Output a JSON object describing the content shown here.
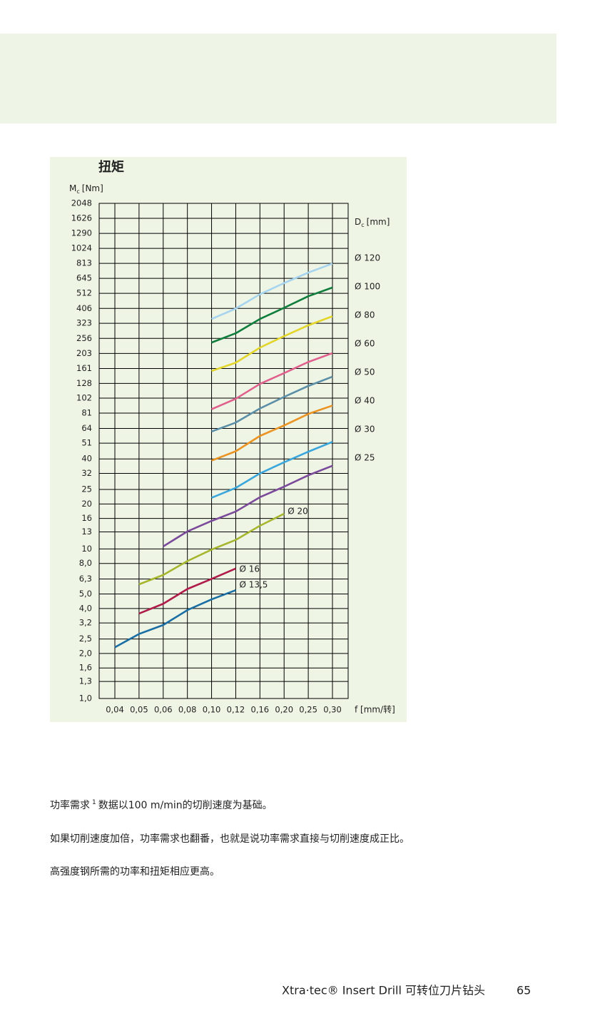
{
  "chart_data": {
    "type": "line",
    "title": "扭矩",
    "y_label": {
      "main": "M",
      "sub": "c",
      "unit": "[Nm]"
    },
    "series_label": {
      "main": "D",
      "sub": "c",
      "unit": "[mm]"
    },
    "x_label": "f [mm/转]",
    "log_y": true,
    "grid": true,
    "categories": [
      "0,04",
      "0,05",
      "0,06",
      "0,08",
      "0,10",
      "0,12",
      "0,16",
      "0,20",
      "0,25",
      "0,30"
    ],
    "ylim": [
      1,
      2048
    ],
    "yticks": [
      {
        "value": 1,
        "label": "1,0"
      },
      {
        "value": 1.3,
        "label": "1,3"
      },
      {
        "value": 1.6,
        "label": "1,6"
      },
      {
        "value": 2,
        "label": "2,0"
      },
      {
        "value": 2.5,
        "label": "2,5"
      },
      {
        "value": 3.2,
        "label": "3,2"
      },
      {
        "value": 4,
        "label": "4,0"
      },
      {
        "value": 5,
        "label": "5,0"
      },
      {
        "value": 6.3,
        "label": "6,3"
      },
      {
        "value": 8,
        "label": "8,0"
      },
      10,
      13,
      16,
      20,
      25,
      32,
      40,
      51,
      64,
      81,
      102,
      128,
      161,
      203,
      256,
      323,
      406,
      512,
      645,
      813,
      1024,
      1290,
      1626,
      2048
    ],
    "series": [
      {
        "name": "Ø 120",
        "color": "#a6d4ee",
        "values": [
          null,
          null,
          null,
          null,
          345,
          405,
          505,
          600,
          705,
          810
        ]
      },
      {
        "name": "Ø 100",
        "color": "#0f7d3c",
        "values": [
          null,
          null,
          null,
          null,
          240,
          277,
          345,
          410,
          490,
          560
        ]
      },
      {
        "name": "Ø 80",
        "color": "#e3d52a",
        "values": [
          null,
          null,
          null,
          null,
          155,
          176,
          222,
          265,
          313,
          360
        ]
      },
      {
        "name": "Ø 60",
        "color": "#e0608e",
        "values": [
          null,
          null,
          null,
          null,
          86,
          101,
          127,
          150,
          178,
          204
        ]
      },
      {
        "name": "Ø 50",
        "color": "#5b8fa8",
        "values": [
          null,
          null,
          null,
          null,
          61,
          70,
          87,
          104,
          123,
          142
        ]
      },
      {
        "name": "Ø 40",
        "color": "#eb9423",
        "values": [
          null,
          null,
          null,
          null,
          39,
          45,
          57,
          67,
          80,
          91
        ]
      },
      {
        "name": "Ø 30",
        "color": "#3aa6dc",
        "values": [
          null,
          null,
          null,
          null,
          22,
          25.6,
          32,
          38,
          44.7,
          52
        ]
      },
      {
        "name": "Ø 25",
        "color": "#7b4a9b",
        "values": [
          null,
          null,
          10.4,
          13.1,
          15.4,
          17.8,
          22.2,
          26.1,
          31.1,
          36
        ]
      },
      {
        "name": "Ø 20",
        "color": "#a6b62e",
        "values": [
          null,
          5.8,
          6.7,
          8.3,
          9.9,
          11.5,
          14.3,
          17.2,
          null,
          null
        ]
      },
      {
        "name": "Ø 16",
        "color": "#b01c4a",
        "values": [
          null,
          3.7,
          4.3,
          5.4,
          6.3,
          7.4,
          null,
          null,
          null,
          null
        ]
      },
      {
        "name": "Ø 13,5",
        "color": "#1a6ea3",
        "values": [
          2.2,
          2.7,
          3.1,
          3.9,
          4.6,
          5.3,
          null,
          null,
          null,
          null
        ]
      }
    ]
  },
  "notes": [
    {
      "before": "功率需求",
      "sup": "1",
      "after": "数据以100 m/min的切削速度为基础。"
    },
    "如果切削速度加倍，功率需求也翻番，也就是说功率需求直接与切削速度成正比。",
    "高强度钢所需的功率和扭矩相应更高。"
  ],
  "footer": {
    "title": "Xtra·tec® Insert Drill 可转位刀片钻头",
    "page": "65"
  }
}
